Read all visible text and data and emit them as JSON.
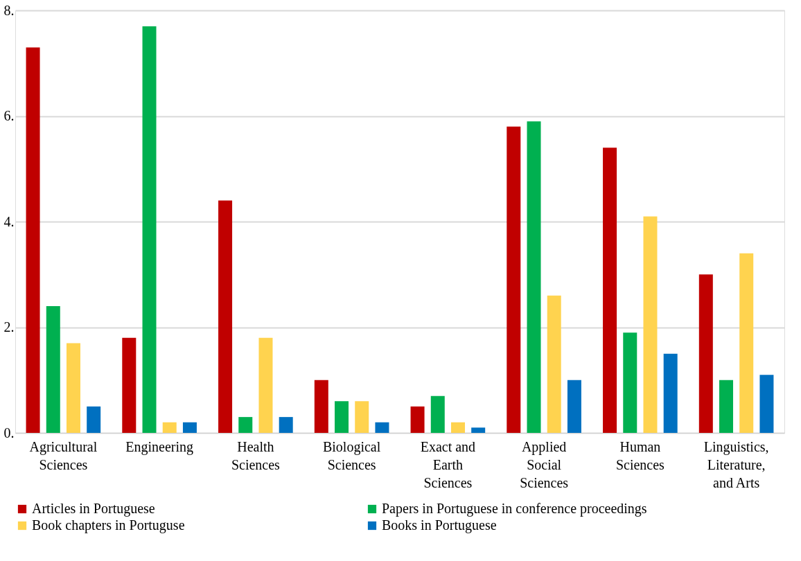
{
  "chart_data": {
    "type": "bar",
    "categories": [
      "Agricultural Sciences",
      "Engineering",
      "Health Sciences",
      "Biological Sciences",
      "Exact and Earth Sciences",
      "Applied Social Sciences",
      "Human Sciences",
      "Linguistics, Literature, and Arts"
    ],
    "series": [
      {
        "name": "Articles in Portuguese",
        "color": "#c00000",
        "values": [
          7.3,
          1.8,
          4.4,
          1.0,
          0.5,
          5.8,
          5.4,
          3.0
        ]
      },
      {
        "name": "Papers in Portuguese in conference proceedings",
        "color": "#00b050",
        "values": [
          2.4,
          7.7,
          0.3,
          0.6,
          0.7,
          5.9,
          1.9,
          1.0
        ]
      },
      {
        "name": "Book chapters in Portuguse",
        "color": "#ffd34f",
        "values": [
          1.7,
          0.2,
          1.8,
          0.6,
          0.2,
          2.6,
          4.1,
          3.4
        ]
      },
      {
        "name": "Books in Portuguese",
        "color": "#0070c0",
        "values": [
          0.5,
          0.2,
          0.3,
          0.2,
          0.1,
          1.0,
          1.5,
          1.1
        ]
      }
    ],
    "ylim": [
      0,
      8
    ],
    "yticks": [
      {
        "value": 0,
        "label": "0."
      },
      {
        "value": 2,
        "label": "2."
      },
      {
        "value": 4,
        "label": "4."
      },
      {
        "value": 6,
        "label": "6."
      },
      {
        "value": 8,
        "label": "8."
      }
    ],
    "grid": "y",
    "legend": "bottom"
  }
}
